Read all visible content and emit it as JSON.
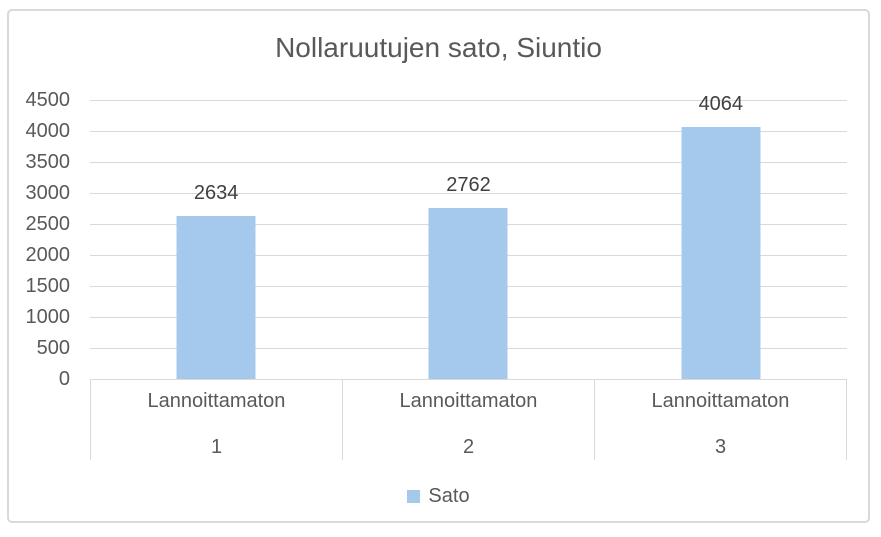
{
  "chart_data": {
    "type": "bar",
    "title": "Nollaruutujen sato, Siuntio",
    "categories": [
      "Lannoittamaton 1",
      "Lannoittamaton 2",
      "Lannoittamaton 3"
    ],
    "category_labels": [
      {
        "line1": "Lannoittamaton",
        "line2": "1"
      },
      {
        "line1": "Lannoittamaton",
        "line2": "2"
      },
      {
        "line1": "Lannoittamaton",
        "line2": "3"
      }
    ],
    "series": [
      {
        "name": "Sato",
        "values": [
          2634,
          2762,
          4064
        ]
      }
    ],
    "xlabel": "",
    "ylabel": "",
    "ylim": [
      0,
      4500
    ],
    "ytick_step": 500,
    "ytick_labels": [
      "0",
      "500",
      "1000",
      "1500",
      "2000",
      "2500",
      "3000",
      "3500",
      "4000",
      "4500"
    ],
    "grid": true,
    "legend_position": "bottom",
    "colors": {
      "bar_fill": "#A5C9EC",
      "grid_line": "#D9D9D9",
      "frame_border": "#D9D9D9",
      "title_text": "#595959",
      "axis_text": "#595959",
      "data_label_text": "#404040"
    }
  }
}
